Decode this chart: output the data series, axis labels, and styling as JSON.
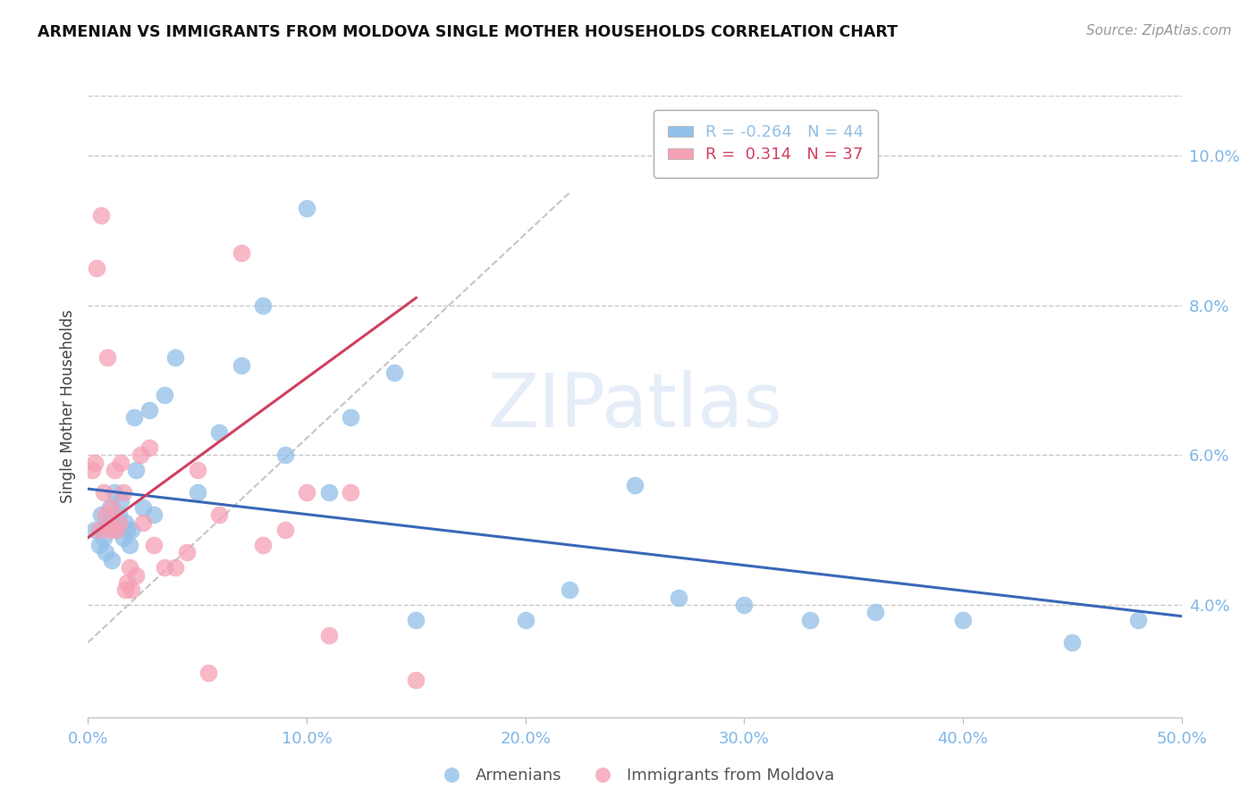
{
  "title": "ARMENIAN VS IMMIGRANTS FROM MOLDOVA SINGLE MOTHER HOUSEHOLDS CORRELATION CHART",
  "source_text": "Source: ZipAtlas.com",
  "ylabel": "Single Mother Households",
  "x_min": 0.0,
  "x_max": 50.0,
  "y_min": 2.5,
  "y_max": 10.8,
  "right_yticks": [
    4.0,
    6.0,
    8.0,
    10.0
  ],
  "bottom_xticks": [
    0.0,
    10.0,
    20.0,
    30.0,
    40.0,
    50.0
  ],
  "armenian_color": "#92C0E8",
  "moldova_color": "#F5A0B5",
  "trend_armenian_color": "#3A68B8",
  "trend_moldova_color": "#D04060",
  "ref_line_color": "#BBBBBB",
  "background_color": "#FFFFFF",
  "grid_color": "#BBBBBB",
  "tick_color": "#7EB6E8",
  "watermark": "ZIPatlas",
  "armenian_R": -0.264,
  "moldova_R": 0.314,
  "armenian_N": 44,
  "moldova_N": 37,
  "armenian_x": [
    0.3,
    0.5,
    0.6,
    0.7,
    0.8,
    0.9,
    1.0,
    1.1,
    1.2,
    1.3,
    1.4,
    1.5,
    1.6,
    1.7,
    1.8,
    1.9,
    2.0,
    2.1,
    2.2,
    2.5,
    2.8,
    3.0,
    3.5,
    4.0,
    5.0,
    6.0,
    7.0,
    8.0,
    9.0,
    10.0,
    11.0,
    12.0,
    14.0,
    15.0,
    20.0,
    22.0,
    25.0,
    27.0,
    30.0,
    33.0,
    36.0,
    40.0,
    45.0,
    48.0
  ],
  "armenian_y": [
    5.0,
    4.8,
    5.2,
    4.9,
    4.7,
    5.1,
    5.3,
    4.6,
    5.5,
    5.0,
    5.2,
    5.4,
    4.9,
    5.1,
    5.0,
    4.8,
    5.0,
    6.5,
    5.8,
    5.3,
    6.6,
    5.2,
    6.8,
    7.3,
    5.5,
    6.3,
    7.2,
    8.0,
    6.0,
    9.3,
    5.5,
    6.5,
    7.1,
    3.8,
    3.8,
    4.2,
    5.6,
    4.1,
    4.0,
    3.8,
    3.9,
    3.8,
    3.5,
    3.8
  ],
  "moldova_x": [
    0.2,
    0.3,
    0.4,
    0.5,
    0.6,
    0.7,
    0.8,
    0.9,
    1.0,
    1.1,
    1.2,
    1.3,
    1.4,
    1.5,
    1.6,
    1.7,
    1.8,
    1.9,
    2.0,
    2.2,
    2.4,
    2.5,
    2.8,
    3.0,
    3.5,
    4.0,
    4.5,
    5.0,
    5.5,
    6.0,
    7.0,
    8.0,
    9.0,
    10.0,
    11.0,
    12.0,
    15.0
  ],
  "moldova_y": [
    5.8,
    5.9,
    8.5,
    5.0,
    9.2,
    5.5,
    5.2,
    7.3,
    5.0,
    5.3,
    5.8,
    5.0,
    5.1,
    5.9,
    5.5,
    4.2,
    4.3,
    4.5,
    4.2,
    4.4,
    6.0,
    5.1,
    6.1,
    4.8,
    4.5,
    4.5,
    4.7,
    5.8,
    3.1,
    5.2,
    8.7,
    4.8,
    5.0,
    5.5,
    3.6,
    5.5,
    3.0
  ],
  "arm_trend_x": [
    0.0,
    50.0
  ],
  "arm_trend_y": [
    5.55,
    3.85
  ],
  "mol_trend_x": [
    0.0,
    15.0
  ],
  "mol_trend_y": [
    4.9,
    8.1
  ],
  "ref_line_x": [
    0.0,
    22.0
  ],
  "ref_line_y": [
    3.5,
    9.5
  ]
}
